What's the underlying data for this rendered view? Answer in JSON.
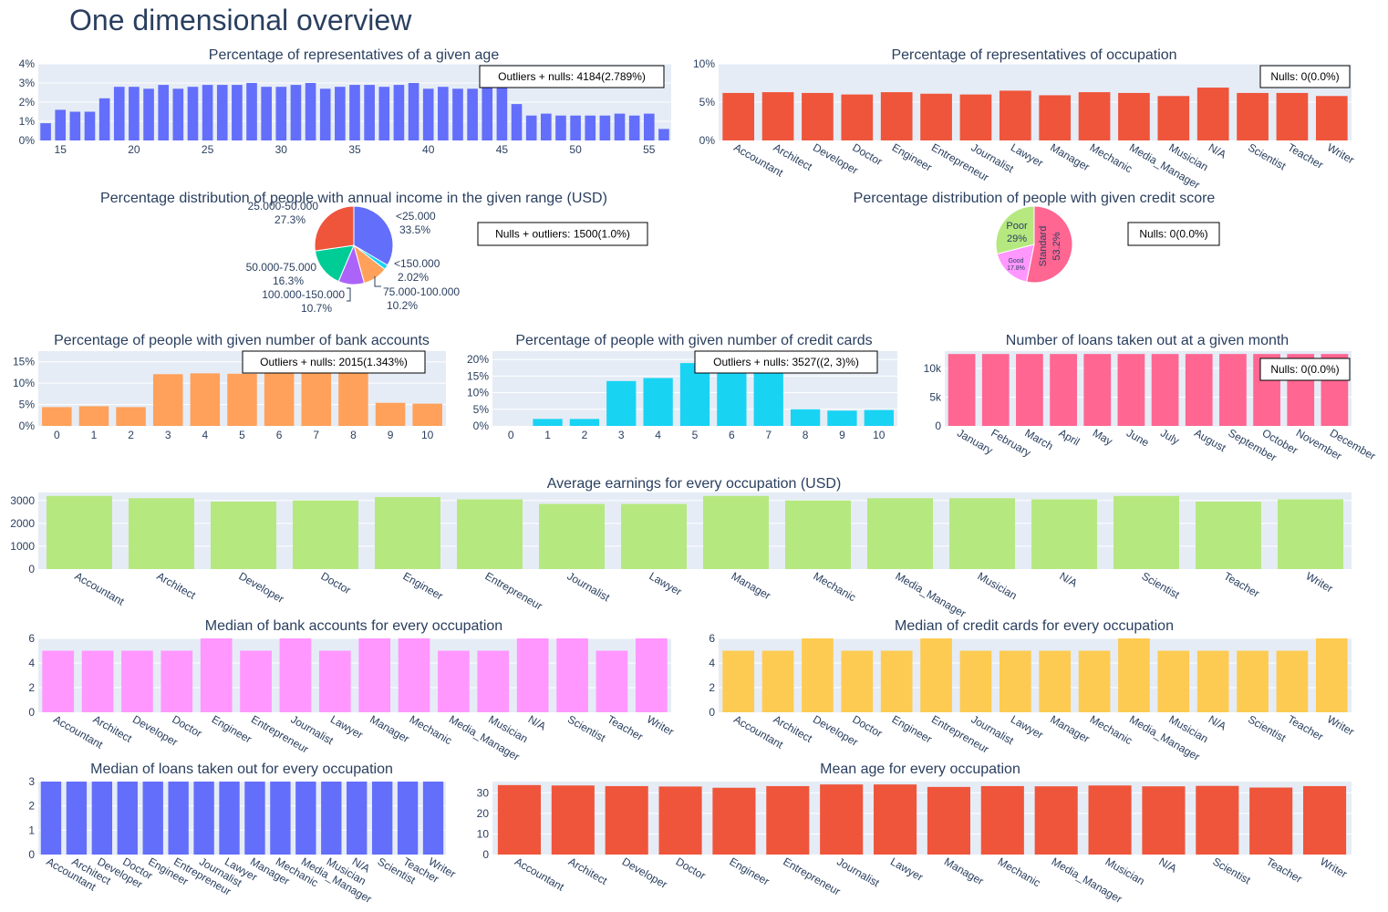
{
  "page": {
    "title": "One dimensional overview"
  },
  "colors": {
    "plot_bg": "#e5ecf6",
    "grid": "#ffffff",
    "text": "#2a3f5f",
    "axis_text": "#2a3f5f",
    "blue": "#636efa",
    "red": "#ef553b",
    "orange": "#ffa15a",
    "cyan": "#19d3f3",
    "pink": "#ff6692",
    "green": "#b6e880",
    "magenta": "#ff97ff",
    "yellow": "#fecb52",
    "teal": "#00cc96",
    "purple": "#ab63fa"
  },
  "chart_data": [
    {
      "id": "age",
      "type": "bar",
      "title": "Percentage of representatives of a given age",
      "color": "blue",
      "x": [
        14,
        15,
        16,
        17,
        18,
        19,
        20,
        21,
        22,
        23,
        24,
        25,
        26,
        27,
        28,
        29,
        30,
        31,
        32,
        33,
        34,
        35,
        36,
        37,
        38,
        39,
        40,
        41,
        42,
        43,
        44,
        45,
        46,
        47,
        48,
        49,
        50,
        51,
        52,
        53,
        54,
        55,
        56
      ],
      "values": [
        0.9,
        1.6,
        1.5,
        1.5,
        2.2,
        2.8,
        2.8,
        2.7,
        2.9,
        2.7,
        2.8,
        2.9,
        2.9,
        2.9,
        3.0,
        2.8,
        2.8,
        2.9,
        3.0,
        2.7,
        2.8,
        2.9,
        2.9,
        2.8,
        2.9,
        3.0,
        2.7,
        2.8,
        2.7,
        2.7,
        2.8,
        2.8,
        1.9,
        1.3,
        1.4,
        1.3,
        1.3,
        1.3,
        1.3,
        1.4,
        1.3,
        1.4,
        0.6
      ],
      "x_ticks": [
        "15",
        "20",
        "25",
        "30",
        "35",
        "40",
        "45",
        "50",
        "55"
      ],
      "x_tick_values": [
        15,
        20,
        25,
        30,
        35,
        40,
        45,
        50,
        55
      ],
      "y_ticks": [
        "0%",
        "1%",
        "2%",
        "3%",
        "4%"
      ],
      "y_tick_values": [
        0,
        1,
        2,
        3,
        4
      ],
      "ylim": [
        0,
        4
      ],
      "annotation": "Outliers + nulls: 4184(2.789%)"
    },
    {
      "id": "occ",
      "type": "bar",
      "title": "Percentage of representatives of occupation",
      "color": "red",
      "categories": [
        "Accountant",
        "Architect",
        "Developer",
        "Doctor",
        "Engineer",
        "Entrepreneur",
        "Journalist",
        "Lawyer",
        "Manager",
        "Mechanic",
        "Media_Manager",
        "Musician",
        "N/A",
        "Scientist",
        "Teacher",
        "Writer"
      ],
      "values": [
        6.2,
        6.3,
        6.2,
        6.0,
        6.3,
        6.1,
        6.0,
        6.5,
        5.9,
        6.3,
        6.2,
        5.8,
        6.9,
        6.2,
        6.2,
        5.8
      ],
      "y_ticks": [
        "0%",
        "5%",
        "10%"
      ],
      "y_tick_values": [
        0,
        5,
        10
      ],
      "ylim": [
        0,
        10
      ],
      "annotation": "Nulls: 0(0.0%)"
    },
    {
      "id": "income",
      "type": "pie",
      "title": "Percentage distribution of people with annual income in the given range (USD)",
      "slices": [
        {
          "label": "<25.000",
          "pct": "33.5%",
          "value": 33.5,
          "color": "blue"
        },
        {
          "label": "<150.000",
          "pct": "2.02%",
          "value": 2.02,
          "color": "cyan"
        },
        {
          "label": "75.000-100.000",
          "pct": "10.2%",
          "value": 10.2,
          "color": "orange"
        },
        {
          "label": "100.000-150.000",
          "pct": "10.7%",
          "value": 10.7,
          "color": "purple"
        },
        {
          "label": "50.000-75.000",
          "pct": "16.3%",
          "value": 16.3,
          "color": "teal"
        },
        {
          "label": "25.000-50.000",
          "pct": "27.3%",
          "value": 27.3,
          "color": "red"
        }
      ],
      "annotation": "Nulls + outliers: 1500(1.0%)"
    },
    {
      "id": "credit",
      "type": "pie",
      "title": "Percentage distribution of people with given credit score",
      "slices": [
        {
          "label": "Standard",
          "pct": "53.2%",
          "value": 53.2,
          "color": "pink"
        },
        {
          "label": "Good",
          "pct": "17.8%",
          "value": 17.8,
          "color": "magenta"
        },
        {
          "label": "Poor",
          "pct": "29%",
          "value": 29.0,
          "color": "green"
        }
      ],
      "annotation": "Nulls: 0(0.0%)"
    },
    {
      "id": "bank",
      "type": "bar",
      "title": "Percentage of people with given number of bank accounts",
      "color": "orange",
      "categories": [
        "0",
        "1",
        "2",
        "3",
        "4",
        "5",
        "6",
        "7",
        "8",
        "9",
        "10"
      ],
      "values": [
        4.4,
        4.6,
        4.4,
        12.1,
        12.3,
        12.2,
        12.3,
        12.3,
        12.3,
        5.4,
        5.2
      ],
      "y_ticks": [
        "0%",
        "5%",
        "10%",
        "15%"
      ],
      "y_tick_values": [
        0,
        5,
        10,
        15
      ],
      "ylim": [
        0,
        17.5
      ],
      "annotation": "Outliers + nulls: 2015(1.343%)"
    },
    {
      "id": "cards",
      "type": "bar",
      "title": "Percentage of people with given number of credit cards",
      "color": "cyan",
      "categories": [
        "0",
        "1",
        "2",
        "3",
        "4",
        "5",
        "6",
        "7",
        "8",
        "9",
        "10"
      ],
      "values": [
        0,
        2.1,
        2.1,
        13.5,
        14.4,
        18.9,
        16.9,
        16.9,
        5.0,
        4.6,
        4.8
      ],
      "y_ticks": [
        "0%",
        "5%",
        "10%",
        "15%",
        "20%"
      ],
      "y_tick_values": [
        0,
        5,
        10,
        15,
        20
      ],
      "ylim": [
        0,
        22.5
      ],
      "annotation": "Outliers + nulls: 3527((2, 3)%)"
    },
    {
      "id": "loans_month",
      "type": "bar",
      "title": "Number of loans taken out at a given month",
      "color": "pink",
      "categories": [
        "January",
        "February",
        "March",
        "April",
        "May",
        "June",
        "July",
        "August",
        "September",
        "October",
        "November",
        "December"
      ],
      "values": [
        12500,
        12500,
        12500,
        12500,
        12500,
        12500,
        12500,
        12500,
        12500,
        12500,
        12500,
        12500
      ],
      "y_ticks": [
        "0",
        "5k",
        "10k"
      ],
      "y_tick_values": [
        0,
        5000,
        10000
      ],
      "ylim": [
        0,
        13000
      ],
      "annotation": "Nulls: 0(0.0%)"
    },
    {
      "id": "earnings",
      "type": "bar",
      "title": "Average earnings for every occupation (USD)",
      "color": "green",
      "categories": [
        "Accountant",
        "Architect",
        "Developer",
        "Doctor",
        "Engineer",
        "Entrepreneur",
        "Journalist",
        "Lawyer",
        "Manager",
        "Mechanic",
        "Media_Manager",
        "Musician",
        "N/A",
        "Scientist",
        "Teacher",
        "Writer"
      ],
      "values": [
        3200,
        3100,
        2950,
        3000,
        3150,
        3050,
        2850,
        2850,
        3200,
        3000,
        3100,
        3100,
        3050,
        3200,
        2950,
        3050
      ],
      "y_ticks": [
        "0",
        "1000",
        "2000",
        "3000"
      ],
      "y_tick_values": [
        0,
        1000,
        2000,
        3000
      ],
      "ylim": [
        0,
        3350
      ]
    },
    {
      "id": "med_bank",
      "type": "bar",
      "title": "Median of bank accounts for every occupation",
      "color": "magenta",
      "categories": [
        "Accountant",
        "Architect",
        "Developer",
        "Doctor",
        "Engineer",
        "Entrepreneur",
        "Journalist",
        "Lawyer",
        "Manager",
        "Mechanic",
        "Media_Manager",
        "Musician",
        "N/A",
        "Scientist",
        "Teacher",
        "Writer"
      ],
      "values": [
        5,
        5,
        5,
        5,
        6,
        5,
        6,
        5,
        6,
        6,
        5,
        5,
        6,
        6,
        5,
        6
      ],
      "y_ticks": [
        "0",
        "2",
        "4",
        "6"
      ],
      "y_tick_values": [
        0,
        2,
        4,
        6
      ],
      "ylim": [
        0,
        6
      ]
    },
    {
      "id": "med_cards",
      "type": "bar",
      "title": "Median of credit cards for every occupation",
      "color": "yellow",
      "categories": [
        "Accountant",
        "Architect",
        "Developer",
        "Doctor",
        "Engineer",
        "Entrepreneur",
        "Journalist",
        "Lawyer",
        "Manager",
        "Mechanic",
        "Media_Manager",
        "Musician",
        "N/A",
        "Scientist",
        "Teacher",
        "Writer"
      ],
      "values": [
        5,
        5,
        6,
        5,
        5,
        6,
        5,
        5,
        5,
        5,
        6,
        5,
        5,
        5,
        5,
        6
      ],
      "y_ticks": [
        "0",
        "2",
        "4",
        "6"
      ],
      "y_tick_values": [
        0,
        2,
        4,
        6
      ],
      "ylim": [
        0,
        6
      ]
    },
    {
      "id": "med_loans",
      "type": "bar",
      "title": "Median of loans taken out for every occupation",
      "color": "blue",
      "categories": [
        "Accountant",
        "Architect",
        "Developer",
        "Doctor",
        "Engineer",
        "Entrepreneur",
        "Journalist",
        "Lawyer",
        "Manager",
        "Mechanic",
        "Media_Manager",
        "Musician",
        "N/A",
        "Scientist",
        "Teacher",
        "Writer"
      ],
      "values": [
        3,
        3,
        3,
        3,
        3,
        3,
        3,
        3,
        3,
        3,
        3,
        3,
        3,
        3,
        3,
        3
      ],
      "y_ticks": [
        "0",
        "1",
        "2",
        "3"
      ],
      "y_tick_values": [
        0,
        1,
        2,
        3
      ],
      "ylim": [
        0,
        3
      ]
    },
    {
      "id": "mean_age",
      "type": "bar",
      "title": "Mean age for every occupation",
      "color": "red",
      "categories": [
        "Accountant",
        "Architect",
        "Developer",
        "Doctor",
        "Engineer",
        "Entrepreneur",
        "Journalist",
        "Lawyer",
        "Manager",
        "Mechanic",
        "Media_Manager",
        "Musician",
        "N/A",
        "Scientist",
        "Teacher",
        "Writer"
      ],
      "values": [
        33.8,
        33.6,
        33.3,
        33.1,
        32.5,
        33.3,
        34.1,
        34.1,
        32.9,
        33.3,
        33.2,
        33.6,
        33.2,
        33.4,
        32.6,
        33.3
      ],
      "y_ticks": [
        "0",
        "10",
        "20",
        "30"
      ],
      "y_tick_values": [
        0,
        10,
        20,
        30
      ],
      "ylim": [
        0,
        35.5
      ]
    }
  ]
}
